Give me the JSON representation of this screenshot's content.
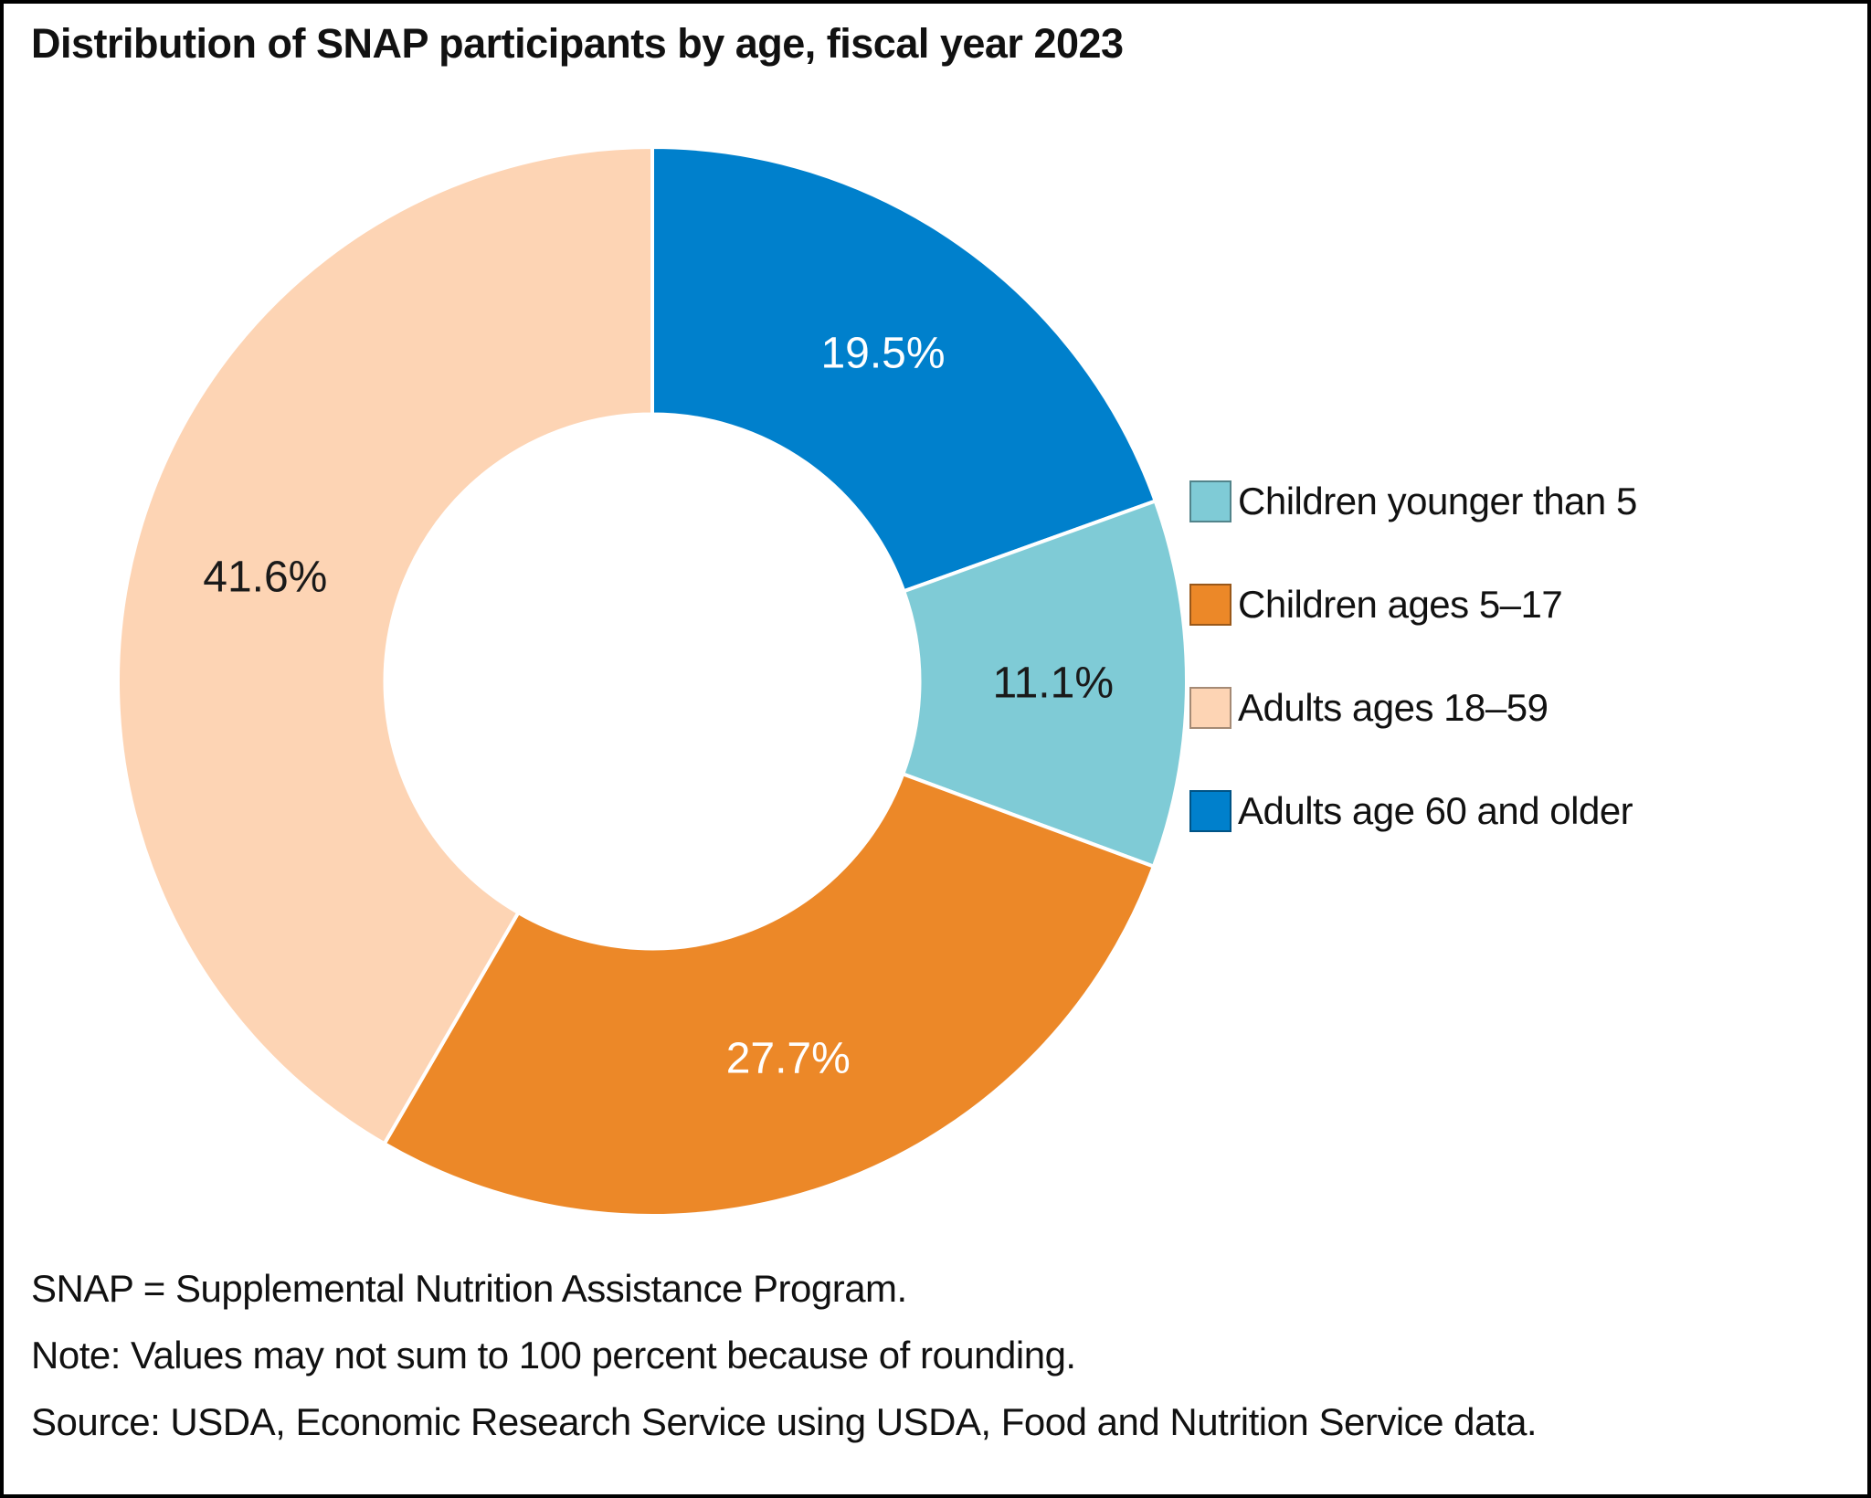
{
  "page": {
    "title": "Distribution of SNAP participants by age, fiscal year 2023",
    "notes": [
      "SNAP = Supplemental Nutrition Assistance Program.",
      "Note: Values may not sum to 100 percent because of rounding.",
      "Source: USDA, Economic Research Service using USDA, Food and Nutrition Service data."
    ]
  },
  "chart_data": {
    "type": "pie",
    "subtype": "donut",
    "title": "Distribution of SNAP participants by age, fiscal year 2023",
    "direction": "clockwise",
    "start_angle_deg_from_12oclock": 0,
    "inner_radius_ratio": 0.5,
    "separator_color": "#ffffff",
    "legend_position": "right",
    "segments": [
      {
        "label": "Children younger than 5",
        "value": 11.1,
        "display": "11.1%",
        "color": "#7fcbd6",
        "label_color": "#1a1a1a"
      },
      {
        "label": "Children ages 5–17",
        "value": 27.7,
        "display": "27.7%",
        "color": "#ec8828",
        "label_color": "#ffffff"
      },
      {
        "label": "Adults ages 18–59",
        "value": 41.6,
        "display": "41.6%",
        "color": "#fdd4b4",
        "label_color": "#1a1a1a"
      },
      {
        "label": "Adults age 60 and older",
        "value": 19.5,
        "display": "19.5%",
        "color": "#0080cc",
        "label_color": "#ffffff"
      }
    ],
    "clockwise_slice_order": [
      3,
      0,
      1,
      2
    ]
  }
}
